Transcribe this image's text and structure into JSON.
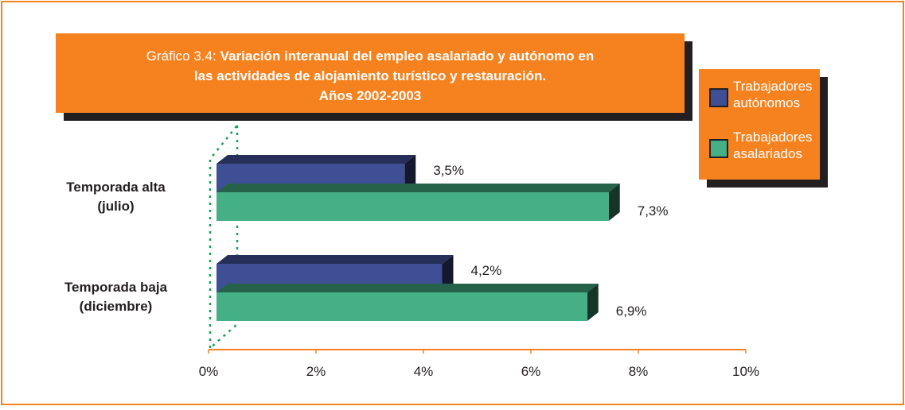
{
  "chart_data": {
    "type": "bar3d_horizontal",
    "title_label": "Gráfico 3.4:",
    "title": [
      "Variación interanual del empleo asalariado y autónomo en",
      "las actividades de alojamiento turístico y restauración.",
      "Años 2002-2003"
    ],
    "categories": [
      "Temporada alta (julio)",
      "Temporada baja (diciembre)"
    ],
    "series": [
      {
        "name": "Trabajadores autónomos",
        "color": "#3f4f95",
        "values": [
          3.5,
          4.2
        ],
        "value_labels": [
          "3,5%",
          "4,2%"
        ]
      },
      {
        "name": "Trabajadores asalariados",
        "color": "#45b086",
        "values": [
          7.3,
          6.9
        ],
        "value_labels": [
          "7,3%",
          "6,9%"
        ]
      }
    ],
    "xlim": [
      0,
      10
    ],
    "xticks": [
      {
        "value": 0,
        "label": "0%"
      },
      {
        "value": 2,
        "label": "2%"
      },
      {
        "value": 4,
        "label": "4%"
      },
      {
        "value": 6,
        "label": "6%"
      },
      {
        "value": 8,
        "label": "8%"
      },
      {
        "value": 10,
        "label": "10%"
      }
    ]
  }
}
